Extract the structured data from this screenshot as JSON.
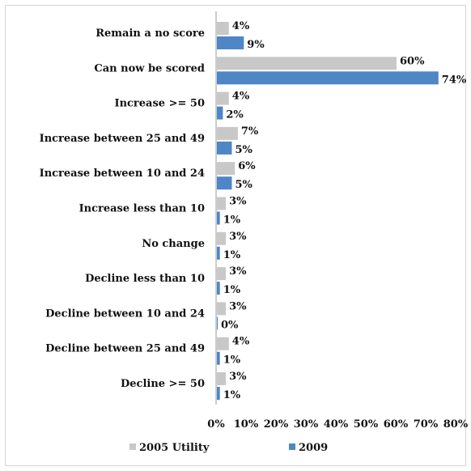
{
  "chart_data": {
    "type": "bar",
    "orientation": "horizontal",
    "categories": [
      "Remain a no score",
      "Can now be scored",
      "Increase >= 50",
      "Increase between 25 and 49",
      "Increase between 10 and 24",
      "Increase less than 10",
      "No change",
      "Decline less than 10",
      "Decline between 10 and 24",
      "Decline between 25 and 49",
      "Decline >= 50"
    ],
    "series": [
      {
        "name": "2005 Utility",
        "color": "#c8c8c8",
        "values": [
          4,
          60,
          4,
          7,
          6,
          3,
          3,
          3,
          3,
          4,
          3
        ],
        "labels": [
          "4%",
          "60%",
          "4%",
          "7%",
          "6%",
          "3%",
          "3%",
          "3%",
          "3%",
          "4%",
          "3%"
        ]
      },
      {
        "name": "2009",
        "color": "#4f86c6",
        "values": [
          9,
          74,
          2,
          5,
          5,
          1,
          1,
          1,
          0,
          1,
          1
        ],
        "labels": [
          "9%",
          "74%",
          "2%",
          "5%",
          "5%",
          "1%",
          "1%",
          "1%",
          "0%",
          "1%",
          "1%"
        ]
      }
    ],
    "xlim": [
      0,
      80
    ],
    "xticks": [
      "0%",
      "10%",
      "20%",
      "30%",
      "40%",
      "50%",
      "60%",
      "70%",
      "80%"
    ],
    "legend_position": "bottom",
    "grid": false
  }
}
